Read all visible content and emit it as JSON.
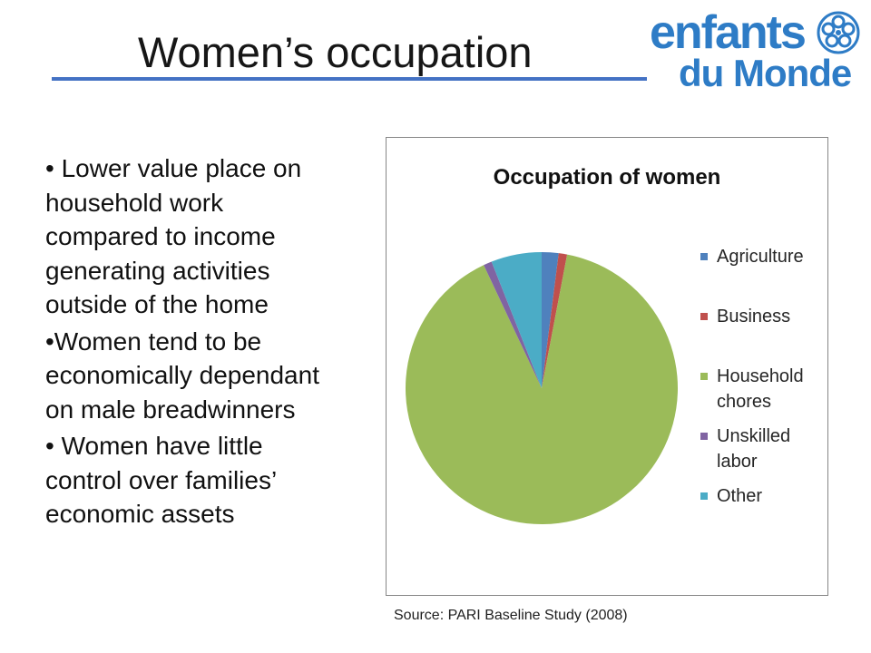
{
  "slide": {
    "title": "Women’s occupation"
  },
  "logo": {
    "line1": "enfants",
    "line2": "du Monde"
  },
  "bullets": [
    {
      "lines": [
        "• Lower value place on",
        "household work",
        "compared to income",
        "generating activities",
        "outside of the home"
      ]
    },
    {
      "lines": [
        "•Women tend to be",
        "economically dependant",
        "on male breadwinners"
      ]
    },
    {
      "lines": [
        "• Women have little",
        "control over families’",
        "economic assets"
      ]
    }
  ],
  "source": "Source: PARI Baseline Study (2008)",
  "colors": {
    "title_rule": "#4472C4",
    "logo": "#2E7CC6",
    "chart_border": "#868686"
  },
  "chart_data": {
    "type": "pie",
    "title": "Occupation of women",
    "categories": [
      "Agriculture",
      "Business",
      "Household chores",
      "Unskilled labor",
      "Other"
    ],
    "values": [
      2,
      1,
      90,
      1,
      6
    ],
    "colors": [
      "#4F81BD",
      "#C0504D",
      "#9BBB59",
      "#8064A2",
      "#4BACC6"
    ],
    "legend": "right"
  }
}
